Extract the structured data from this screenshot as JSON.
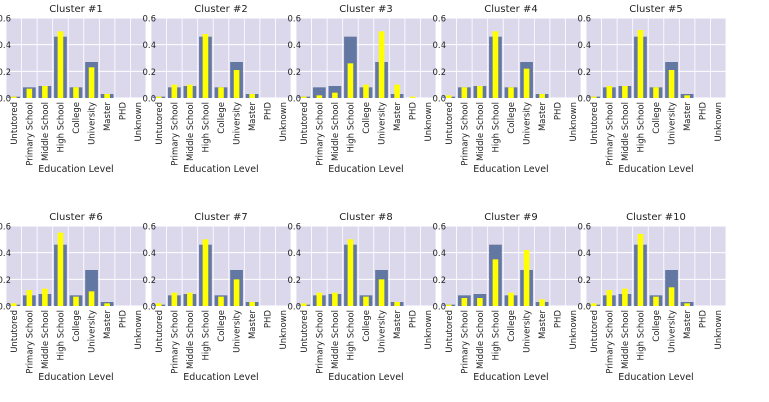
{
  "style": {
    "plot_background": "#dcd8ec",
    "grid_color": "#ffffff",
    "overall_bar_color": "#6377a3",
    "cluster_bar_color": "#ffff00",
    "text_color": "#222222"
  },
  "chart_data": [
    {
      "type": "bar",
      "title": "Cluster #1",
      "xlabel": "Education Level",
      "ylim": [
        0,
        0.6
      ],
      "yticks": [
        "0.0",
        "0.2",
        "0.4",
        "0.6"
      ],
      "categories": [
        "Untutored",
        "Primary School",
        "Middle School",
        "High School",
        "College",
        "University",
        "Master",
        "PHD",
        "Unknown"
      ],
      "series": [
        {
          "values": [
            0.01,
            0.08,
            0.09,
            0.46,
            0.08,
            0.27,
            0.03,
            0.0,
            0.0
          ]
        },
        {
          "values": [
            0.01,
            0.07,
            0.09,
            0.5,
            0.08,
            0.23,
            0.03,
            0.0,
            0.0
          ]
        }
      ]
    },
    {
      "type": "bar",
      "title": "Cluster #2",
      "xlabel": "Education Level",
      "ylim": [
        0,
        0.6
      ],
      "yticks": [
        "0.0",
        "0.2",
        "0.4",
        "0.6"
      ],
      "categories": [
        "Untutored",
        "Primary School",
        "Middle School",
        "High School",
        "College",
        "University",
        "Master",
        "PHD",
        "Unknown"
      ],
      "series": [
        {
          "values": [
            0.01,
            0.08,
            0.09,
            0.46,
            0.08,
            0.27,
            0.03,
            0.0,
            0.0
          ]
        },
        {
          "values": [
            0.01,
            0.1,
            0.1,
            0.48,
            0.08,
            0.21,
            0.03,
            0.0,
            0.0
          ]
        }
      ]
    },
    {
      "type": "bar",
      "title": "Cluster #3",
      "xlabel": "Education Level",
      "ylim": [
        0,
        0.6
      ],
      "yticks": [
        "0.0",
        "0.2",
        "0.4",
        "0.6"
      ],
      "categories": [
        "Untutored",
        "Primary School",
        "Middle School",
        "High School",
        "College",
        "University",
        "Master",
        "PHD",
        "Unknown"
      ],
      "series": [
        {
          "values": [
            0.01,
            0.08,
            0.09,
            0.46,
            0.08,
            0.27,
            0.03,
            0.0,
            0.0
          ]
        },
        {
          "values": [
            0.01,
            0.02,
            0.04,
            0.26,
            0.1,
            0.5,
            0.1,
            0.01,
            0.0
          ]
        }
      ]
    },
    {
      "type": "bar",
      "title": "Cluster #4",
      "xlabel": "Education Level",
      "ylim": [
        0,
        0.6
      ],
      "yticks": [
        "0.0",
        "0.2",
        "0.4",
        "0.6"
      ],
      "categories": [
        "Untutored",
        "Primary School",
        "Middle School",
        "High School",
        "College",
        "University",
        "Master",
        "PHD",
        "Unknown"
      ],
      "series": [
        {
          "values": [
            0.01,
            0.08,
            0.09,
            0.46,
            0.08,
            0.27,
            0.03,
            0.0,
            0.0
          ]
        },
        {
          "values": [
            0.02,
            0.08,
            0.09,
            0.5,
            0.08,
            0.22,
            0.03,
            0.0,
            0.0
          ]
        }
      ]
    },
    {
      "type": "bar",
      "title": "Cluster #5",
      "xlabel": "Education Level",
      "ylim": [
        0,
        0.6
      ],
      "yticks": [
        "0.0",
        "0.2",
        "0.4",
        "0.6"
      ],
      "categories": [
        "Untutored",
        "Primary School",
        "Middle School",
        "High School",
        "College",
        "University",
        "Master",
        "PHD",
        "Unknown"
      ],
      "series": [
        {
          "values": [
            0.01,
            0.08,
            0.09,
            0.46,
            0.08,
            0.27,
            0.03,
            0.0,
            0.0
          ]
        },
        {
          "values": [
            0.01,
            0.09,
            0.09,
            0.51,
            0.08,
            0.21,
            0.02,
            0.0,
            0.0
          ]
        }
      ]
    },
    {
      "type": "bar",
      "title": "Cluster #6",
      "xlabel": "Education Level",
      "ylim": [
        0,
        0.6
      ],
      "yticks": [
        "0.0",
        "0.2",
        "0.4",
        "0.6"
      ],
      "categories": [
        "Untutored",
        "Primary School",
        "Middle School",
        "High School",
        "College",
        "University",
        "Master",
        "PHD",
        "Unknown"
      ],
      "series": [
        {
          "values": [
            0.01,
            0.08,
            0.09,
            0.46,
            0.08,
            0.27,
            0.03,
            0.0,
            0.0
          ]
        },
        {
          "values": [
            0.02,
            0.12,
            0.13,
            0.55,
            0.07,
            0.11,
            0.02,
            0.0,
            0.0
          ]
        }
      ]
    },
    {
      "type": "bar",
      "title": "Cluster #7",
      "xlabel": "Education Level",
      "ylim": [
        0,
        0.6
      ],
      "yticks": [
        "0.0",
        "0.2",
        "0.4",
        "0.6"
      ],
      "categories": [
        "Untutored",
        "Primary School",
        "Middle School",
        "High School",
        "College",
        "University",
        "Master",
        "PHD",
        "Unknown"
      ],
      "series": [
        {
          "values": [
            0.01,
            0.08,
            0.09,
            0.46,
            0.08,
            0.27,
            0.03,
            0.0,
            0.0
          ]
        },
        {
          "values": [
            0.02,
            0.1,
            0.1,
            0.5,
            0.07,
            0.2,
            0.03,
            0.0,
            0.0
          ]
        }
      ]
    },
    {
      "type": "bar",
      "title": "Cluster #8",
      "xlabel": "Education Level",
      "ylim": [
        0,
        0.6
      ],
      "yticks": [
        "0.0",
        "0.2",
        "0.4",
        "0.6"
      ],
      "categories": [
        "Untutored",
        "Primary School",
        "Middle School",
        "High School",
        "College",
        "University",
        "Master",
        "PHD",
        "Unknown"
      ],
      "series": [
        {
          "values": [
            0.01,
            0.08,
            0.09,
            0.46,
            0.08,
            0.27,
            0.03,
            0.0,
            0.0
          ]
        },
        {
          "values": [
            0.02,
            0.1,
            0.1,
            0.5,
            0.07,
            0.2,
            0.03,
            0.0,
            0.0
          ]
        }
      ]
    },
    {
      "type": "bar",
      "title": "Cluster #9",
      "xlabel": "Education Level",
      "ylim": [
        0,
        0.6
      ],
      "yticks": [
        "0.0",
        "0.2",
        "0.4",
        "0.6"
      ],
      "categories": [
        "Untutored",
        "Primary School",
        "Middle School",
        "High School",
        "College",
        "University",
        "Master",
        "PHD",
        "Unknown"
      ],
      "series": [
        {
          "values": [
            0.01,
            0.08,
            0.09,
            0.46,
            0.08,
            0.27,
            0.03,
            0.0,
            0.0
          ]
        },
        {
          "values": [
            0.01,
            0.06,
            0.06,
            0.35,
            0.1,
            0.42,
            0.05,
            0.0,
            0.0
          ]
        }
      ]
    },
    {
      "type": "bar",
      "title": "Cluster #10",
      "xlabel": "Education Level",
      "ylim": [
        0,
        0.6
      ],
      "yticks": [
        "0.0",
        "0.2",
        "0.4",
        "0.6"
      ],
      "categories": [
        "Untutored",
        "Primary School",
        "Middle School",
        "High School",
        "College",
        "University",
        "Master",
        "PHD",
        "Unknown"
      ],
      "series": [
        {
          "values": [
            0.01,
            0.08,
            0.09,
            0.46,
            0.08,
            0.27,
            0.03,
            0.0,
            0.0
          ]
        },
        {
          "values": [
            0.02,
            0.12,
            0.13,
            0.54,
            0.07,
            0.14,
            0.02,
            0.0,
            0.0
          ]
        }
      ]
    }
  ]
}
